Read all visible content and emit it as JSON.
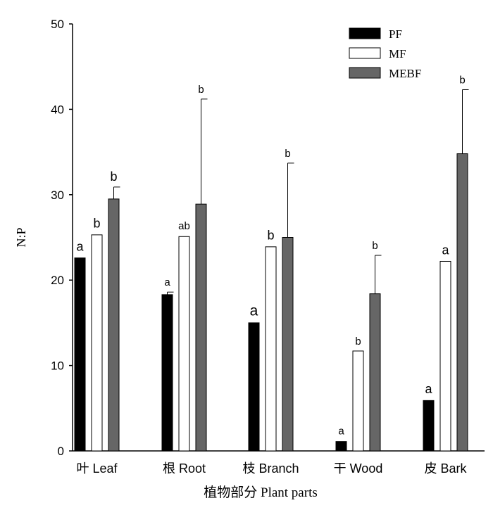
{
  "chart_data": {
    "type": "bar",
    "ylabel": "N:P",
    "xlabel": "植物部分 Plant parts",
    "ylim": [
      0,
      50
    ],
    "yticks": [
      0,
      10,
      20,
      30,
      40,
      50
    ],
    "categories": [
      "叶  Leaf",
      "根 Root",
      "枝 Branch",
      "干 Wood",
      "皮  Bark"
    ],
    "legend_position": "top-right",
    "series": [
      {
        "name": "PF",
        "color": "#000000",
        "values": [
          22.6,
          18.3,
          15.0,
          1.1,
          5.9
        ],
        "errors": [
          0.1,
          0.3,
          0.1,
          0.1,
          0.1
        ],
        "letters": [
          "a",
          "a",
          "a",
          "a",
          "a"
        ]
      },
      {
        "name": "MF",
        "color": "#ffffff",
        "values": [
          25.3,
          25.1,
          23.9,
          11.7,
          22.2
        ],
        "errors": [
          0.1,
          0.1,
          0.1,
          0.0,
          0.1
        ],
        "letters": [
          "b",
          "ab",
          "b",
          "b",
          "a"
        ]
      },
      {
        "name": "MEBF",
        "color": "#666666",
        "values": [
          29.5,
          28.9,
          25.0,
          18.4,
          34.8
        ],
        "errors": [
          1.4,
          12.3,
          8.7,
          4.5,
          7.5
        ],
        "letters": [
          "b",
          "b",
          "b",
          "b",
          "b"
        ]
      }
    ]
  }
}
